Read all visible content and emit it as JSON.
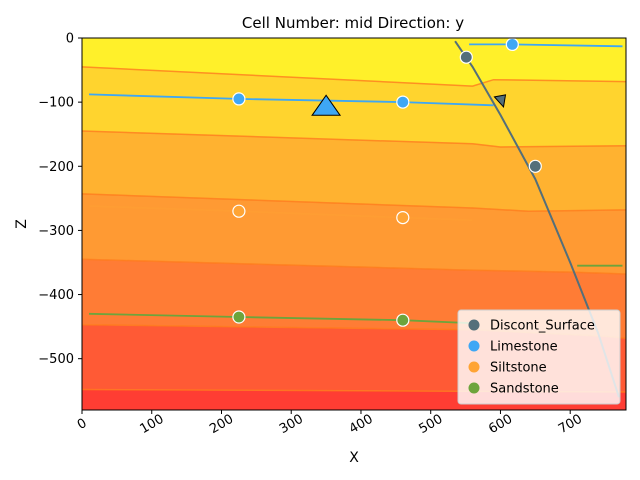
{
  "chart_data": {
    "type": "contour-section",
    "title": "Cell Number: mid Direction: y",
    "xlabel": "X",
    "ylabel": "Z",
    "xlim": [
      0,
      780
    ],
    "ylim": [
      -580,
      0
    ],
    "xticks": [
      0,
      100,
      200,
      300,
      400,
      500,
      600,
      700
    ],
    "yticks": [
      0,
      -100,
      -200,
      -300,
      -400,
      -500
    ],
    "layer_colors": [
      "#fff02a",
      "#ffd42e",
      "#ffb230",
      "#ff9a33",
      "#ff7c35",
      "#ff5a35",
      "#ff3d33"
    ],
    "layer_boundaries": [
      {
        "x": [
          0,
          560,
          590,
          780
        ],
        "y": [
          -45,
          -75,
          -65,
          -68
        ]
      },
      {
        "x": [
          0,
          560,
          600,
          780
        ],
        "y": [
          -145,
          -165,
          -170,
          -168
        ]
      },
      {
        "x": [
          0,
          560,
          640,
          780
        ],
        "y": [
          -243,
          -265,
          -270,
          -268
        ]
      },
      {
        "x": [
          0,
          560,
          700,
          780
        ],
        "y": [
          -345,
          -362,
          -365,
          -368
        ]
      },
      {
        "x": [
          0,
          560,
          750,
          780
        ],
        "y": [
          -447,
          -455,
          -465,
          -468
        ]
      },
      {
        "x": [
          0,
          780
        ],
        "y": [
          -548,
          -552
        ]
      }
    ],
    "fault_line": {
      "x": [
        535,
        560,
        600,
        650,
        700,
        740,
        770
      ],
      "y": [
        -5,
        -45,
        -120,
        -220,
        -350,
        -460,
        -560
      ]
    },
    "surface_lines": [
      {
        "name": "Limestone",
        "x": [
          10,
          225,
          460,
          590
        ],
        "y": [
          -88,
          -95,
          -100,
          -105
        ]
      },
      {
        "name": "Limestone",
        "x": [
          555,
          615,
          775
        ],
        "y": [
          -10,
          -10,
          -13
        ]
      },
      {
        "name": "Sandstone",
        "x": [
          10,
          225,
          460,
          565
        ],
        "y": [
          -430,
          -435,
          -440,
          -445
        ]
      },
      {
        "name": "Sandstone",
        "x": [
          710,
          735,
          775
        ],
        "y": [
          -355,
          -355,
          -355
        ]
      },
      {
        "name": "Siltstone",
        "x": [
          10,
          225,
          460,
          560
        ],
        "y": [
          -262,
          -270,
          -280,
          -284
        ]
      }
    ],
    "points": [
      {
        "series": "Discont_Surface",
        "x": [
          551,
          650
        ],
        "y": [
          -30,
          -200
        ]
      },
      {
        "series": "Limestone",
        "x": [
          225,
          460,
          617
        ],
        "y": [
          -95,
          -100,
          -10
        ]
      },
      {
        "series": "Siltstone",
        "x": [
          225,
          460
        ],
        "y": [
          -270,
          -280
        ]
      },
      {
        "series": "Sandstone",
        "x": [
          225,
          460
        ],
        "y": [
          -435,
          -440
        ]
      }
    ],
    "orientations": [
      {
        "series": "Limestone",
        "x": [
          350
        ],
        "y": [
          -108
        ]
      },
      {
        "series": "Discont_Surface",
        "x": [
          600
        ],
        "y": [
          -98
        ]
      }
    ],
    "legend": {
      "placement": "lower-right",
      "entries": [
        {
          "label": "Discont_Surface",
          "color": "#546f7a"
        },
        {
          "label": "Limestone",
          "color": "#3ea7f5"
        },
        {
          "label": "Siltstone",
          "color": "#ffa434"
        },
        {
          "label": "Sandstone",
          "color": "#6da43c"
        }
      ]
    }
  }
}
